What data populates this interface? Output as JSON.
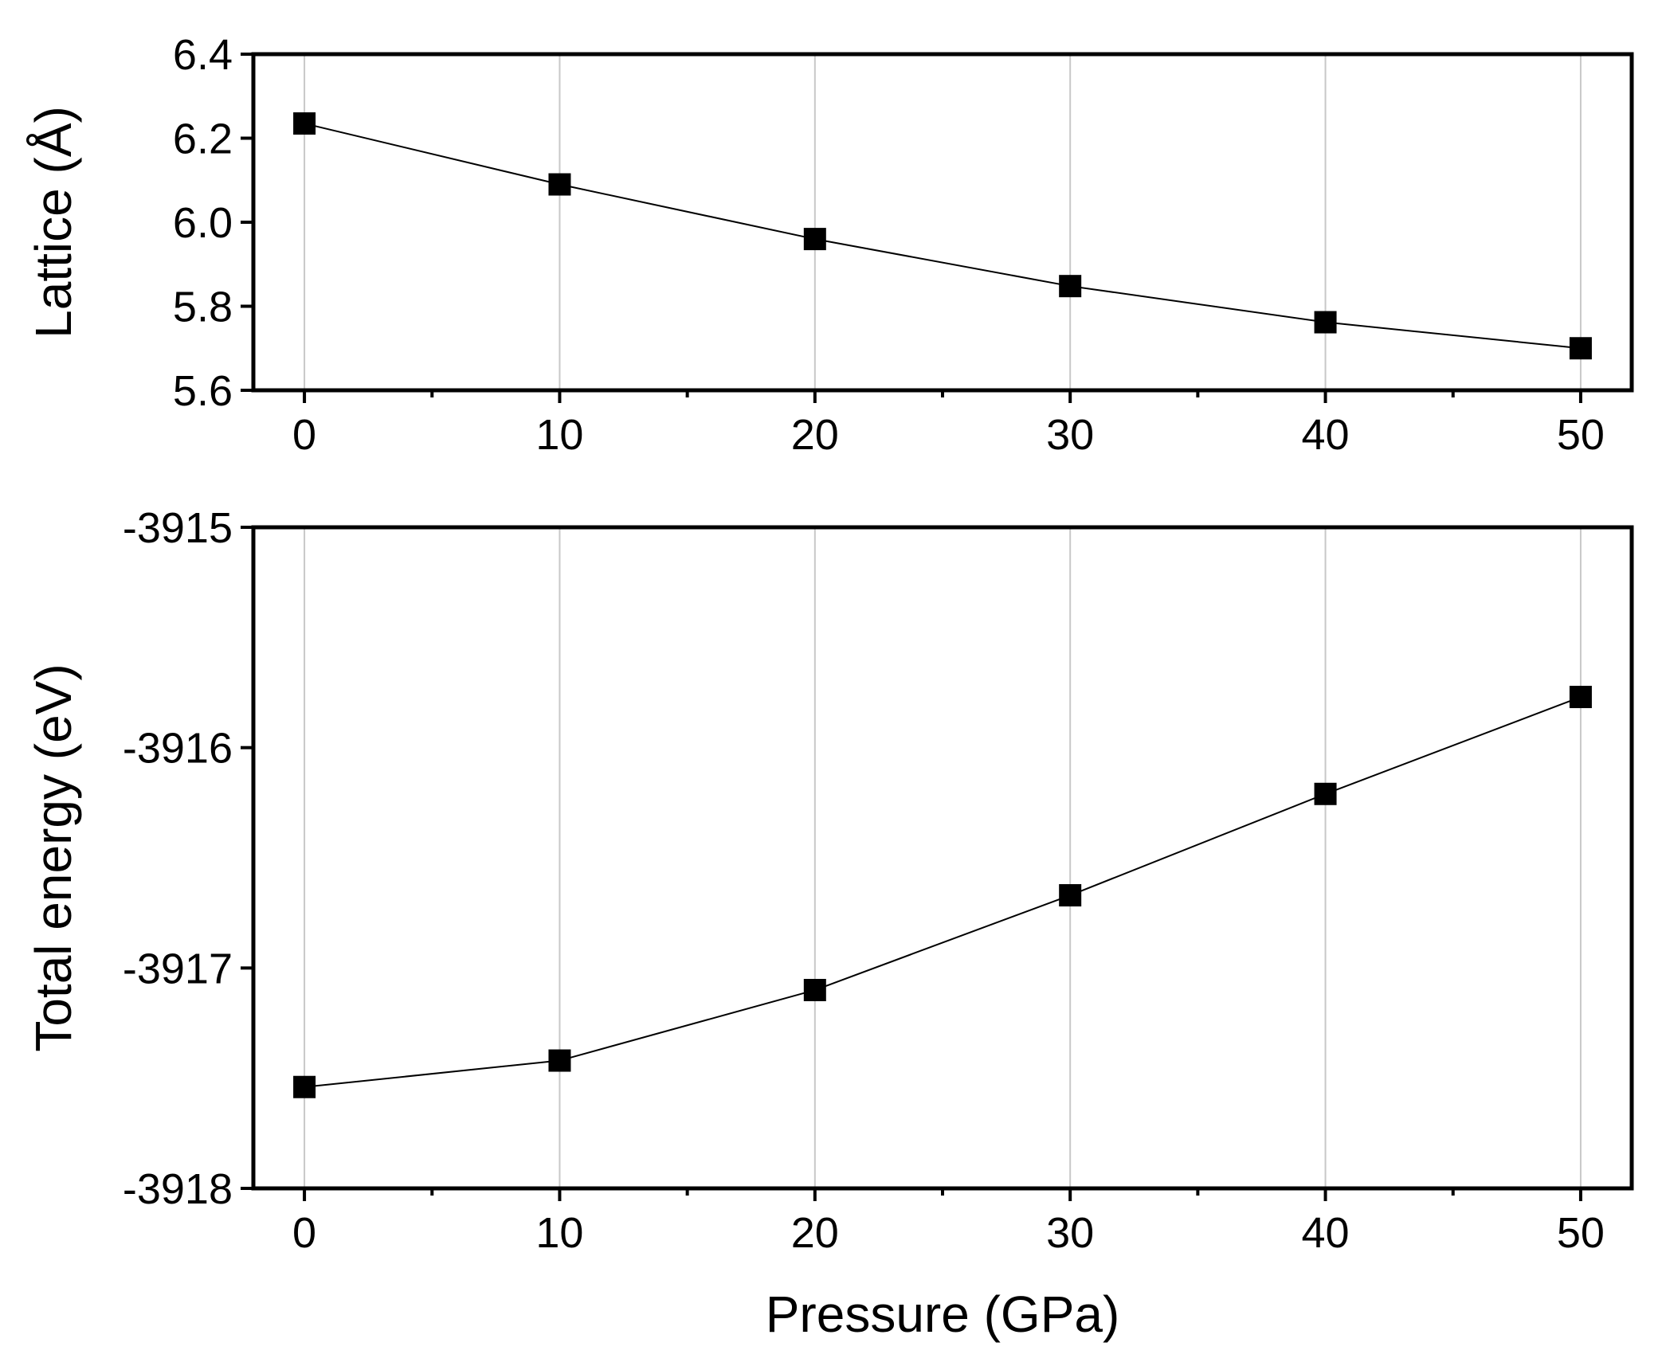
{
  "chart_data": [
    {
      "type": "line",
      "title": "",
      "xlabel": "",
      "ylabel": "Lattice (Å)",
      "x": [
        0,
        10,
        20,
        30,
        40,
        50
      ],
      "series": [
        {
          "name": "Lattice",
          "values": [
            6.235,
            6.09,
            5.96,
            5.848,
            5.762,
            5.7
          ]
        }
      ],
      "xlim": [
        -2,
        52
      ],
      "ylim": [
        5.6,
        6.4
      ],
      "xticks": [
        0,
        10,
        20,
        30,
        40,
        50
      ],
      "xtick_labels": [
        "0",
        "10",
        "20",
        "30",
        "40",
        "50"
      ],
      "yticks": [
        5.6,
        5.8,
        6.0,
        6.2,
        6.4
      ],
      "ytick_labels": [
        "5.6",
        "5.8",
        "6.0",
        "6.2",
        "6.4"
      ],
      "minor_xticks": [
        5,
        15,
        25,
        35,
        45
      ],
      "grid": "vertical",
      "marker": "square",
      "color": "#000000"
    },
    {
      "type": "line",
      "title": "",
      "xlabel": "Pressure (GPa)",
      "ylabel": "Total energy (eV)",
      "x": [
        0,
        10,
        20,
        30,
        40,
        50
      ],
      "series": [
        {
          "name": "Total energy",
          "values": [
            -3917.54,
            -3917.42,
            -3917.1,
            -3916.67,
            -3916.21,
            -3915.77
          ]
        }
      ],
      "xlim": [
        -2,
        52
      ],
      "ylim": [
        -3918,
        -3915
      ],
      "xticks": [
        0,
        10,
        20,
        30,
        40,
        50
      ],
      "xtick_labels": [
        "0",
        "10",
        "20",
        "30",
        "40",
        "50"
      ],
      "yticks": [
        -3918,
        -3917,
        -3916,
        -3915
      ],
      "ytick_labels": [
        "-3918",
        "-3917",
        "-3916",
        "-3915"
      ],
      "minor_xticks": [
        5,
        15,
        25,
        35,
        45
      ],
      "grid": "vertical",
      "marker": "square",
      "color": "#000000"
    }
  ]
}
